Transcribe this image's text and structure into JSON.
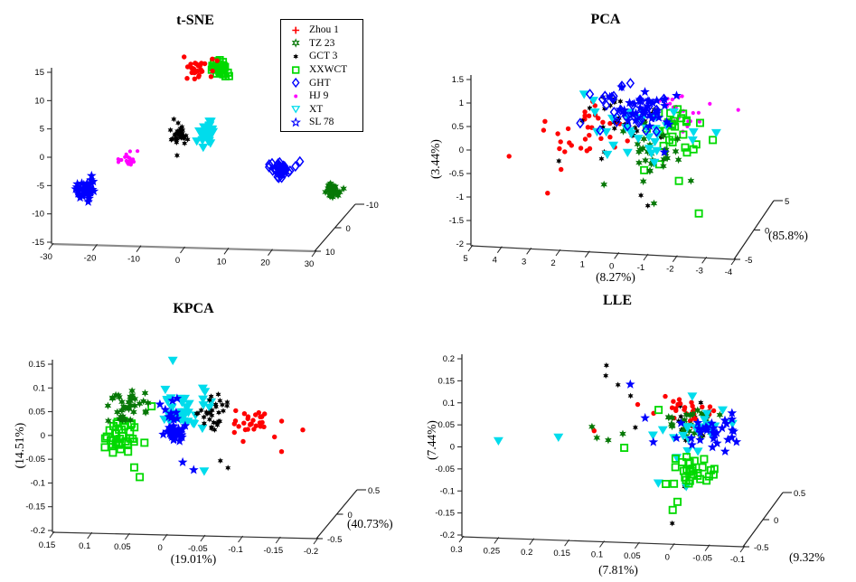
{
  "figure": {
    "background": "#ffffff"
  },
  "legend": {
    "entries": [
      {
        "key": "zhou1",
        "label": "Zhou 1",
        "color": "#ff0000",
        "legend_marker": "plus",
        "plot_marker": "dot"
      },
      {
        "key": "tz23",
        "label": "TZ 23",
        "color": "#077807",
        "legend_marker": "hexagram-open",
        "plot_marker": "hexagram"
      },
      {
        "key": "gct3",
        "label": "GCT 3",
        "color": "#000000",
        "legend_marker": "hexagram-small",
        "plot_marker": "hexagram-small"
      },
      {
        "key": "xxwct",
        "label": "XXWCT",
        "color": "#00d900",
        "legend_marker": "square-open",
        "plot_marker": "square-open"
      },
      {
        "key": "ght",
        "label": "GHT",
        "color": "#0000ff",
        "legend_marker": "diamond-open",
        "plot_marker": "diamond-open"
      },
      {
        "key": "hj9",
        "label": "HJ 9",
        "color": "#ff00ff",
        "legend_marker": "dot-small",
        "plot_marker": "dot-small"
      },
      {
        "key": "xt",
        "label": "XT",
        "color": "#00dcec",
        "legend_marker": "triangle-down-open",
        "plot_marker": "triangle-down"
      },
      {
        "key": "sl78",
        "label": "SL 78",
        "color": "#0000ff",
        "legend_marker": "star-open",
        "plot_marker": "star"
      }
    ]
  },
  "chart_data": [
    {
      "type": "scatter",
      "projection": "3d",
      "title": "t-SNE",
      "xlabel": "",
      "ylabel": "",
      "zlabel": "",
      "x_ticks": [
        -30,
        -20,
        -10,
        0,
        10,
        20,
        30
      ],
      "y_ticks": [
        15,
        10,
        5,
        0,
        -5,
        -10,
        -15
      ],
      "z_ticks": [
        10,
        0,
        -10
      ],
      "xlim": [
        -30,
        30
      ],
      "ylim": [
        -15,
        15
      ],
      "clusters": [
        {
          "series": "xxwct",
          "n": 42,
          "center": [
            7.2,
            16
          ],
          "spread": [
            1.5,
            1.1
          ],
          "zbias": 0.08
        },
        {
          "series": "zhou1",
          "n": 26,
          "center": [
            3.2,
            15.8
          ],
          "spread": [
            1.8,
            1.1
          ],
          "zbias": 0.08,
          "points": [
            [
              0.5,
              14.2
            ],
            [
              7.5,
              17.6
            ],
            [
              1.2,
              16.6
            ]
          ]
        },
        {
          "series": "gct3",
          "n": 32,
          "center": [
            -1,
            4.8
          ],
          "spread": [
            1.3,
            1.2
          ],
          "points": [
            [
              -1.5,
              0.8
            ]
          ]
        },
        {
          "series": "xt",
          "n": 40,
          "center": [
            5.3,
            4.8
          ],
          "spread": [
            1.3,
            1.3
          ]
        },
        {
          "series": "hj9",
          "n": 22,
          "center": [
            -12.7,
            -0.1
          ],
          "spread": [
            1.3,
            0.8
          ],
          "points": [
            [
              -10.5,
              1.4
            ],
            [
              -14.8,
              -0.6
            ]
          ]
        },
        {
          "series": "sl78",
          "n": 32,
          "center": [
            -22,
            -5.6
          ],
          "spread": [
            1.6,
            1.2
          ],
          "points": [
            [
              -24.5,
              -5.5
            ],
            [
              -21,
              -3.2
            ]
          ]
        },
        {
          "series": "ght",
          "n": 40,
          "center": [
            22.5,
            -1
          ],
          "spread": [
            1.6,
            0.8
          ],
          "points": [
            [
              26.5,
              0.3
            ]
          ]
        },
        {
          "series": "tz23",
          "n": 40,
          "center": [
            31.5,
            -7.2
          ],
          "spread": [
            0.9,
            0.9
          ],
          "zbias": 0.3
        }
      ]
    },
    {
      "type": "scatter",
      "projection": "3d",
      "title": "PCA",
      "xlabel": "(8.27%)",
      "ylabel": "(3.44%)",
      "zlabel": "(85.8%)",
      "x_ticks": [
        5,
        4,
        3,
        2,
        1,
        0,
        -1,
        -2,
        -3,
        -4
      ],
      "y_ticks": [
        1.5,
        1,
        0.5,
        0,
        -0.5,
        -1,
        -1.5,
        -2
      ],
      "z_ticks": [
        -5,
        0,
        5
      ],
      "xlim": [
        5,
        -4
      ],
      "ylim": [
        -2,
        1.5
      ],
      "clusters": [
        {
          "series": "hj9",
          "n": 20,
          "center": [
            -2.4,
            0.95
          ],
          "spread": [
            0.5,
            0.3
          ],
          "points": [
            [
              -4.2,
              1.2
            ],
            [
              -2.0,
              1.4
            ],
            [
              -1.5,
              1.3
            ]
          ]
        },
        {
          "series": "zhou1",
          "n": 30,
          "center": [
            1.0,
            0.55
          ],
          "spread": [
            0.9,
            0.35
          ],
          "points": [
            [
              3.6,
              0
            ],
            [
              2.5,
              -0.95
            ],
            [
              2.6,
              0.42
            ],
            [
              1.9,
              -0.3
            ],
            [
              2.0,
              0.1
            ]
          ]
        },
        {
          "series": "gct3",
          "n": 26,
          "center": [
            -0.2,
            0.75
          ],
          "spread": [
            1.0,
            0.4
          ],
          "points": [
            [
              1.9,
              -0.05
            ],
            [
              -0.9,
              -0.7
            ],
            [
              -1.2,
              -0.85
            ],
            [
              0.4,
              1.35
            ]
          ]
        },
        {
          "series": "xxwct",
          "n": 26,
          "center": [
            -1.9,
            0.65
          ],
          "spread": [
            0.6,
            0.35
          ],
          "points": [
            [
              -3.3,
              0.5
            ],
            [
              -2.9,
              -1.0
            ],
            [
              -2.8,
              0.45
            ],
            [
              -2.2,
              -0.35
            ]
          ]
        },
        {
          "series": "tz23",
          "n": 30,
          "center": [
            -1.3,
            0.15
          ],
          "spread": [
            0.6,
            0.4
          ],
          "points": [
            [
              -1.3,
              -0.9
            ],
            [
              0.3,
              -0.45
            ],
            [
              -0.3,
              0.65
            ]
          ]
        },
        {
          "series": "xt",
          "n": 30,
          "center": [
            -0.8,
            0.5
          ],
          "spread": [
            1.0,
            0.4
          ],
          "points": [
            [
              1.3,
              1.15
            ],
            [
              -3.3,
              0.55
            ],
            [
              0.8,
              1.2
            ]
          ]
        },
        {
          "series": "ght",
          "n": 30,
          "center": [
            -0.6,
            1.0
          ],
          "spread": [
            0.9,
            0.35
          ],
          "points": [
            [
              0.9,
              1.35
            ],
            [
              1.2,
              0.75
            ]
          ]
        },
        {
          "series": "sl78",
          "n": 34,
          "center": [
            -0.9,
            1.05
          ],
          "spread": [
            0.7,
            0.3
          ],
          "points": [
            [
              -0.2,
              1.55
            ],
            [
              -1.6,
              0.15
            ]
          ]
        }
      ]
    },
    {
      "type": "scatter",
      "projection": "3d",
      "title": "KPCA",
      "xlabel": "(19.01%)",
      "ylabel": "(14.51%)",
      "zlabel": "(40.73%)",
      "x_ticks": [
        0.15,
        0.1,
        0.05,
        0,
        -0.05,
        -0.1,
        -0.15,
        -0.2
      ],
      "y_ticks": [
        0.15,
        0.1,
        0.05,
        0,
        -0.05,
        -0.1,
        -0.15,
        -0.2
      ],
      "z_ticks": [
        -0.5,
        0,
        0.5
      ],
      "xlim": [
        0.15,
        -0.2
      ],
      "ylim": [
        -0.2,
        0.15
      ],
      "clusters": [
        {
          "series": "xxwct",
          "n": 36,
          "center": [
            0.058,
            0.005
          ],
          "spread": [
            0.016,
            0.028
          ],
          "points": [
            [
              0.03,
              -0.075
            ],
            [
              0.04,
              -0.06
            ]
          ]
        },
        {
          "series": "tz23",
          "n": 36,
          "center": [
            0.05,
            0.07
          ],
          "spread": [
            0.018,
            0.032
          ],
          "points": [
            [
              0.075,
              0.035
            ]
          ]
        },
        {
          "series": "xt",
          "n": 36,
          "center": [
            -0.028,
            0.065
          ],
          "spread": [
            0.018,
            0.03
          ],
          "points": [
            [
              -0.01,
              0.165
            ],
            [
              -0.055,
              -0.06
            ]
          ]
        },
        {
          "series": "sl78",
          "n": 36,
          "center": [
            -0.012,
            0.025
          ],
          "spread": [
            0.013,
            0.032
          ],
          "points": [
            [
              -0.035,
              -0.07
            ],
            [
              -0.02,
              -0.055
            ]
          ]
        },
        {
          "series": "gct3",
          "n": 30,
          "center": [
            -0.062,
            0.05
          ],
          "spread": [
            0.016,
            0.028
          ],
          "points": [
            [
              -0.07,
              -0.05
            ],
            [
              -0.085,
              -0.055
            ]
          ]
        },
        {
          "series": "zhou1",
          "n": 30,
          "center": [
            -0.115,
            0.035
          ],
          "spread": [
            0.018,
            0.022
          ],
          "points": [
            [
              -0.185,
              0.03
            ],
            [
              -0.155,
              -0.02
            ]
          ]
        }
      ]
    },
    {
      "type": "scatter",
      "projection": "3d",
      "title": "LLE",
      "xlabel": "(7.81%)",
      "ylabel": "(7.44%)",
      "zlabel": "(9.32%",
      "x_ticks": [
        0.3,
        0.25,
        0.2,
        0.15,
        0.1,
        0.05,
        0,
        -0.05,
        -0.1
      ],
      "y_ticks": [
        0.2,
        0.15,
        0.1,
        0.05,
        0,
        -0.05,
        -0.1,
        -0.15,
        -0.2
      ],
      "z_ticks": [
        -0.5,
        0,
        0.5
      ],
      "xlim": [
        0.3,
        -0.1
      ],
      "ylim": [
        -0.2,
        0.2
      ],
      "clusters": [
        {
          "series": "gct3",
          "n": 14,
          "center": [
            -0.03,
            0.07
          ],
          "spread": [
            0.025,
            0.025
          ],
          "points": [
            [
              0.095,
              0.195
            ],
            [
              0.09,
              0.185
            ],
            [
              0.075,
              0.16
            ],
            [
              0.062,
              0.125
            ],
            [
              0.05,
              0.065
            ],
            [
              0.0,
              -0.155
            ],
            [
              -0.02,
              -0.065
            ]
          ]
        },
        {
          "series": "zhou1",
          "n": 28,
          "center": [
            -0.02,
            0.1
          ],
          "spread": [
            0.03,
            0.018
          ],
          "points": [
            [
              0.115,
              0.04
            ],
            [
              0.05,
              0.11
            ]
          ]
        },
        {
          "series": "tz23",
          "n": 28,
          "center": [
            -0.025,
            0.07
          ],
          "spread": [
            0.03,
            0.022
          ],
          "points": [
            [
              0.12,
              0.045
            ],
            [
              0.105,
              0.038
            ],
            [
              0.085,
              0.042
            ],
            [
              0.07,
              0.045
            ]
          ]
        },
        {
          "series": "xt",
          "n": 22,
          "center": [
            -0.035,
            0.06
          ],
          "spread": [
            0.03,
            0.03
          ],
          "points": [
            [
              0.24,
              0.035
            ],
            [
              0.165,
              0.025
            ],
            [
              0.02,
              -0.065
            ],
            [
              -0.015,
              -0.005
            ],
            [
              -0.02,
              -0.07
            ]
          ]
        },
        {
          "series": "xxwct",
          "n": 30,
          "center": [
            -0.025,
            -0.045
          ],
          "spread": [
            0.022,
            0.03
          ],
          "points": [
            [
              0.065,
              0.02
            ],
            [
              -0.005,
              -0.115
            ],
            [
              -0.01,
              -0.1
            ],
            [
              0.02,
              0.1
            ]
          ]
        },
        {
          "series": "sl78",
          "n": 30,
          "center": [
            -0.055,
            0.06
          ],
          "spread": [
            0.025,
            0.03
          ],
          "points": [
            [
              0.065,
              0.145
            ],
            [
              0.035,
              0.09
            ],
            [
              0.025,
              0.032
            ],
            [
              -0.085,
              0.1
            ]
          ]
        }
      ]
    }
  ]
}
